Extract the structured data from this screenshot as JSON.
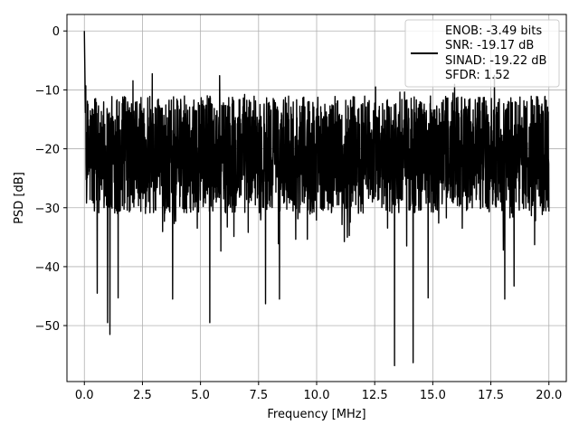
{
  "chart_data": {
    "type": "line",
    "title": "",
    "xlabel": "Frequency [MHz]",
    "ylabel": "PSD [dB]",
    "xlim": [
      -0.75,
      20.75
    ],
    "ylim": [
      -59.5,
      2.8
    ],
    "xticks": [
      0.0,
      2.5,
      5.0,
      7.5,
      10.0,
      12.5,
      15.0,
      17.5,
      20.0
    ],
    "xtick_labels": [
      "0.0",
      "2.5",
      "5.0",
      "7.5",
      "10.0",
      "12.5",
      "15.0",
      "17.5",
      "20.0"
    ],
    "yticks": [
      0,
      -10,
      -20,
      -30,
      -40,
      -50
    ],
    "ytick_labels": [
      "0",
      "−10",
      "−20",
      "−30",
      "−40",
      "−50"
    ],
    "grid": true,
    "legend_placement": "top-right",
    "legend": [
      "ENOB: -3.49 bits",
      "SNR: -19.17 dB",
      "SINAD: -19.22 dB",
      "SFDR: 1.52"
    ],
    "series": [
      {
        "color": "#000000",
        "description_note": "noise-like spectrum over 0 to 20 MHz, mostly between about -12 and -33 dB",
        "x_range": [
          0,
          20
        ],
        "peak": {
          "x": 0.0,
          "y": 0.0
        },
        "upper_envelope_typical": -12,
        "lower_envelope_typical": -33,
        "notable_dips": [
          {
            "x": 0.55,
            "y": -44.5
          },
          {
            "x": 1.0,
            "y": -49.5
          },
          {
            "x": 1.1,
            "y": -51.5
          },
          {
            "x": 1.45,
            "y": -45.3
          },
          {
            "x": 3.8,
            "y": -45.5
          },
          {
            "x": 5.4,
            "y": -49.5
          },
          {
            "x": 7.8,
            "y": -46.3
          },
          {
            "x": 8.4,
            "y": -45.5
          },
          {
            "x": 13.35,
            "y": -56.8
          },
          {
            "x": 14.15,
            "y": -56.3
          },
          {
            "x": 14.8,
            "y": -45.3
          },
          {
            "x": 18.1,
            "y": -45.5
          },
          {
            "x": 18.5,
            "y": -43.3
          }
        ]
      }
    ]
  }
}
